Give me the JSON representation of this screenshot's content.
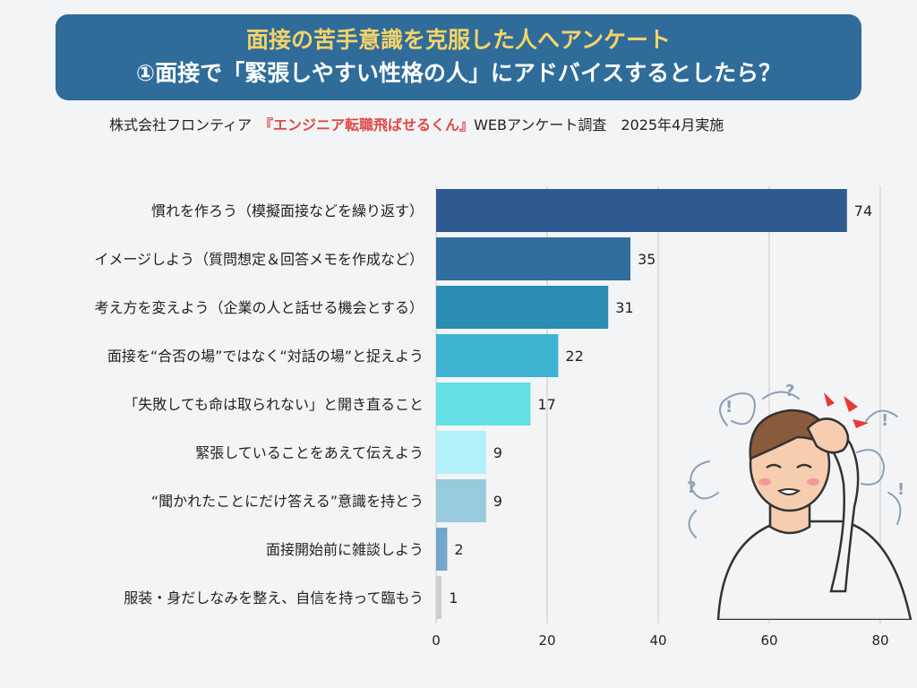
{
  "header": {
    "title_line1": "面接の苦手意識を克服した人へアンケート",
    "title_line2": "①面接で「緊張しやすい性格の人」にアドバイスするとしたら？"
  },
  "subtitle": {
    "prefix": "株式会社フロンティア　",
    "highlight": "『エンジニア転職飛ばせるくん』",
    "suffix": "WEBアンケート調査　2025年4月実施"
  },
  "chart_data": {
    "type": "bar",
    "orientation": "horizontal",
    "categories": [
      "慣れを作ろう（模擬面接などを繰り返す）",
      "イメージしよう（質問想定＆回答メモを作成など）",
      "考え方を変えよう（企業の人と話せる機会とする）",
      "面接を“合否の場”ではなく“対話の場”と捉えよう",
      "「失敗しても命は取られない」と開き直ること",
      "緊張していることをあえて伝えよう",
      "“聞かれたことにだけ答える”意識を持とう",
      "面接開始前に雑談しよう",
      "服装・身だしなみを整え、自信を持って臨もう"
    ],
    "values": [
      74,
      35,
      31,
      22,
      17,
      9,
      9,
      2,
      1
    ],
    "colors": [
      "#2e5a91",
      "#306e9f",
      "#2b8cb4",
      "#3fb3d2",
      "#65e0e5",
      "#b2f1f9",
      "#98cadd",
      "#73a6cc",
      "#cfcfcf"
    ],
    "xlim": [
      0,
      80
    ],
    "xticks": [
      0,
      20,
      40,
      60,
      80
    ],
    "grid": true
  }
}
